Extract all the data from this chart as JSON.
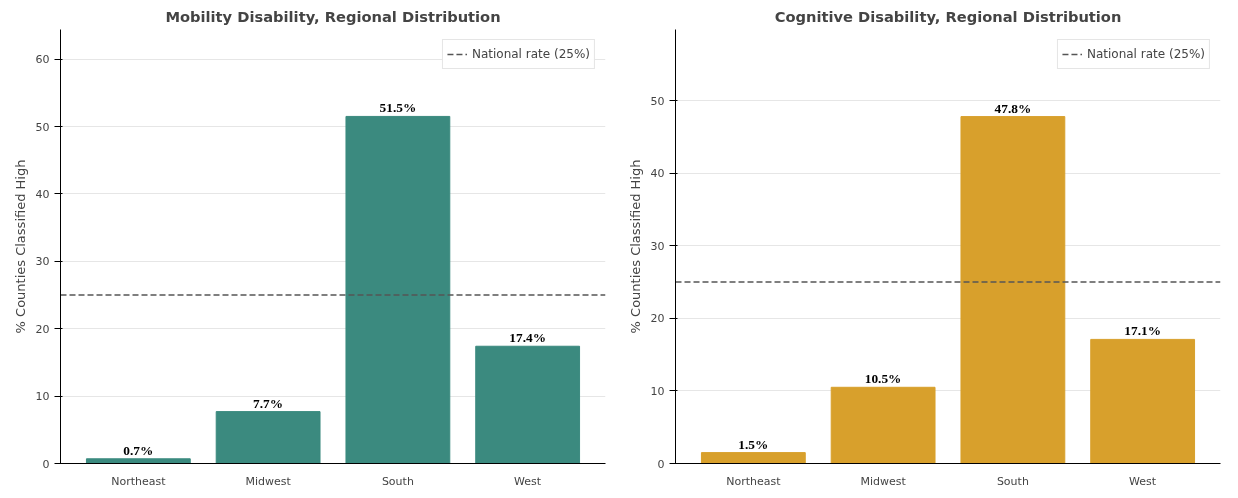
{
  "chart_data": [
    {
      "type": "bar",
      "title": "Mobility Disability, Regional Distribution",
      "ylabel": "% Counties Classified High",
      "categories": [
        "Northeast",
        "Midwest",
        "South",
        "West"
      ],
      "values": [
        0.7,
        7.7,
        51.5,
        17.4
      ],
      "color": "#3b8a7f",
      "value_labels": [
        "0.7%",
        "7.7%",
        "51.5%",
        "17.4%"
      ],
      "ylim": [
        0,
        64.4
      ],
      "yticks": [
        0,
        10,
        20,
        30,
        40,
        50,
        60
      ],
      "grid": "y",
      "legend": "top right",
      "ref_lines": [
        {
          "axis": "y",
          "value": 25,
          "label": "National rate (25%)",
          "color": "#555555",
          "line_style": "dashed"
        }
      ]
    },
    {
      "type": "bar",
      "title": "Cognitive Disability, Regional Distribution",
      "ylabel": "% Counties Classified High",
      "categories": [
        "Northeast",
        "Midwest",
        "South",
        "West"
      ],
      "values": [
        1.5,
        10.5,
        47.8,
        17.1
      ],
      "color": "#d8a02c",
      "value_labels": [
        "1.5%",
        "10.5%",
        "47.8%",
        "17.1%"
      ],
      "ylim": [
        0,
        59.8
      ],
      "yticks": [
        0,
        10,
        20,
        30,
        40,
        50
      ],
      "grid": "y",
      "legend": "top right",
      "ref_lines": [
        {
          "axis": "y",
          "value": 25,
          "label": "National rate (25%)",
          "color": "#555555",
          "line_style": "dashed"
        }
      ]
    }
  ]
}
